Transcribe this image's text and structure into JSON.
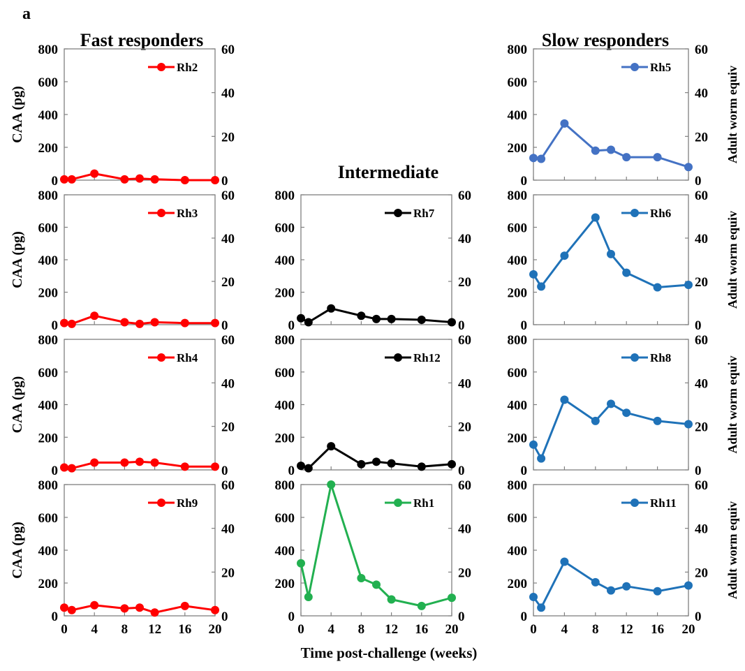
{
  "figure": {
    "panel_letter": "a",
    "x_axis_title": "Time post-challenge (weeks)",
    "y_left_title": "CAA (pg)",
    "y_right_title": "Adult worm equiv",
    "column_titles": {
      "fast": "Fast responders",
      "intermediate": "Intermediate",
      "slow": "Slow responders"
    }
  },
  "colors": {
    "fast": "#ff0000",
    "intermediate": "#000000",
    "rh1": "#22b050",
    "rh5": "#4472c4",
    "slow": "#1f72b8"
  },
  "chart_data": [
    {
      "type": "line",
      "series": [
        {
          "name": "Rh2",
          "x": [
            0,
            1,
            4,
            8,
            10,
            12,
            16,
            20
          ],
          "values": [
            5,
            5,
            40,
            5,
            10,
            5,
            0,
            0
          ]
        }
      ],
      "xlim": [
        0,
        20
      ],
      "xticks": [
        0,
        4,
        8,
        12,
        16,
        20
      ],
      "ylim": [
        0,
        800
      ],
      "yticks": [
        0,
        200,
        400,
        600,
        800
      ],
      "y2lim": [
        0,
        60
      ],
      "y2ticks": [
        0,
        20,
        40,
        60
      ],
      "grid": false,
      "legend_position": "top-right"
    },
    {
      "type": "line",
      "series": [
        {
          "name": "Rh3",
          "x": [
            0,
            1,
            4,
            8,
            10,
            12,
            16,
            20
          ],
          "values": [
            10,
            5,
            55,
            15,
            5,
            15,
            10,
            10
          ]
        }
      ],
      "xlim": [
        0,
        20
      ],
      "xticks": [
        0,
        4,
        8,
        12,
        16,
        20
      ],
      "ylim": [
        0,
        800
      ],
      "yticks": [
        0,
        200,
        400,
        600,
        800
      ],
      "y2lim": [
        0,
        60
      ],
      "y2ticks": [
        0,
        20,
        40,
        60
      ],
      "grid": false,
      "legend_position": "top-right"
    },
    {
      "type": "line",
      "series": [
        {
          "name": "Rh4",
          "x": [
            0,
            1,
            4,
            8,
            10,
            12,
            16,
            20
          ],
          "values": [
            15,
            10,
            45,
            45,
            50,
            45,
            20,
            20
          ]
        }
      ],
      "xlim": [
        0,
        20
      ],
      "xticks": [
        0,
        4,
        8,
        12,
        16,
        20
      ],
      "ylim": [
        0,
        800
      ],
      "yticks": [
        0,
        200,
        400,
        600,
        800
      ],
      "y2lim": [
        0,
        60
      ],
      "y2ticks": [
        0,
        20,
        40,
        60
      ],
      "grid": false,
      "legend_position": "top-right"
    },
    {
      "type": "line",
      "series": [
        {
          "name": "Rh9",
          "x": [
            0,
            1,
            4,
            8,
            10,
            12,
            16,
            20
          ],
          "values": [
            50,
            35,
            65,
            45,
            50,
            20,
            60,
            35
          ]
        }
      ],
      "xlim": [
        0,
        20
      ],
      "xticks": [
        0,
        4,
        8,
        12,
        16,
        20
      ],
      "ylim": [
        0,
        800
      ],
      "yticks": [
        0,
        200,
        400,
        600,
        800
      ],
      "y2lim": [
        0,
        60
      ],
      "y2ticks": [
        0,
        20,
        40,
        60
      ],
      "grid": false,
      "legend_position": "top-right"
    },
    {
      "type": "line",
      "series": [
        {
          "name": "Rh7",
          "x": [
            0,
            1,
            4,
            8,
            10,
            12,
            16,
            20
          ],
          "values": [
            40,
            15,
            100,
            55,
            35,
            35,
            30,
            15
          ]
        }
      ],
      "xlim": [
        0,
        20
      ],
      "xticks": [
        0,
        4,
        8,
        12,
        16,
        20
      ],
      "ylim": [
        0,
        800
      ],
      "yticks": [
        0,
        200,
        400,
        600,
        800
      ],
      "y2lim": [
        0,
        60
      ],
      "y2ticks": [
        0,
        20,
        40,
        60
      ],
      "grid": false,
      "legend_position": "top-right"
    },
    {
      "type": "line",
      "series": [
        {
          "name": "Rh12",
          "x": [
            0,
            1,
            4,
            8,
            10,
            12,
            16,
            20
          ],
          "values": [
            25,
            10,
            145,
            35,
            50,
            40,
            20,
            35
          ]
        }
      ],
      "xlim": [
        0,
        20
      ],
      "xticks": [
        0,
        4,
        8,
        12,
        16,
        20
      ],
      "ylim": [
        0,
        800
      ],
      "yticks": [
        0,
        200,
        400,
        600,
        800
      ],
      "y2lim": [
        0,
        60
      ],
      "y2ticks": [
        0,
        20,
        40,
        60
      ],
      "grid": false,
      "legend_position": "top-right"
    },
    {
      "type": "line",
      "series": [
        {
          "name": "Rh1",
          "x": [
            0,
            1,
            4,
            8,
            10,
            12,
            16,
            20
          ],
          "values": [
            320,
            115,
            800,
            230,
            190,
            100,
            60,
            110
          ]
        }
      ],
      "xlim": [
        0,
        20
      ],
      "xticks": [
        0,
        4,
        8,
        12,
        16,
        20
      ],
      "ylim": [
        0,
        800
      ],
      "yticks": [
        0,
        200,
        400,
        600,
        800
      ],
      "y2lim": [
        0,
        60
      ],
      "y2ticks": [
        0,
        20,
        40,
        60
      ],
      "grid": false,
      "legend_position": "top-right"
    },
    {
      "type": "line",
      "series": [
        {
          "name": "Rh5",
          "x": [
            0,
            1,
            4,
            8,
            10,
            12,
            16,
            20
          ],
          "values": [
            135,
            130,
            345,
            180,
            185,
            140,
            140,
            80
          ]
        }
      ],
      "xlim": [
        0,
        20
      ],
      "xticks": [
        0,
        4,
        8,
        12,
        16,
        20
      ],
      "ylim": [
        0,
        800
      ],
      "yticks": [
        0,
        200,
        400,
        600,
        800
      ],
      "y2lim": [
        0,
        60
      ],
      "y2ticks": [
        0,
        20,
        40,
        60
      ],
      "grid": false,
      "legend_position": "top-right"
    },
    {
      "type": "line",
      "series": [
        {
          "name": "Rh6",
          "x": [
            0,
            1,
            4,
            8,
            10,
            12,
            16,
            20
          ],
          "values": [
            310,
            235,
            425,
            660,
            435,
            320,
            230,
            245
          ]
        }
      ],
      "xlim": [
        0,
        20
      ],
      "xticks": [
        0,
        4,
        8,
        12,
        16,
        20
      ],
      "ylim": [
        0,
        800
      ],
      "yticks": [
        0,
        200,
        400,
        600,
        800
      ],
      "y2lim": [
        0,
        60
      ],
      "y2ticks": [
        0,
        20,
        40,
        60
      ],
      "grid": false,
      "legend_position": "top-right"
    },
    {
      "type": "line",
      "series": [
        {
          "name": "Rh8",
          "x": [
            0,
            1,
            4,
            8,
            10,
            12,
            16,
            20
          ],
          "values": [
            155,
            70,
            430,
            300,
            405,
            350,
            300,
            280
          ]
        }
      ],
      "xlim": [
        0,
        20
      ],
      "xticks": [
        0,
        4,
        8,
        12,
        16,
        20
      ],
      "ylim": [
        0,
        800
      ],
      "yticks": [
        0,
        200,
        400,
        600,
        800
      ],
      "y2lim": [
        0,
        60
      ],
      "y2ticks": [
        0,
        20,
        40,
        60
      ],
      "grid": false,
      "legend_position": "top-right"
    },
    {
      "type": "line",
      "series": [
        {
          "name": "Rh11",
          "x": [
            0,
            1,
            4,
            8,
            10,
            12,
            16,
            20
          ],
          "values": [
            115,
            50,
            330,
            205,
            155,
            180,
            150,
            185
          ]
        }
      ],
      "xlim": [
        0,
        20
      ],
      "xticks": [
        0,
        4,
        8,
        12,
        16,
        20
      ],
      "ylim": [
        0,
        800
      ],
      "yticks": [
        0,
        200,
        400,
        600,
        800
      ],
      "y2lim": [
        0,
        60
      ],
      "y2ticks": [
        0,
        20,
        40,
        60
      ],
      "grid": false,
      "legend_position": "top-right"
    }
  ]
}
